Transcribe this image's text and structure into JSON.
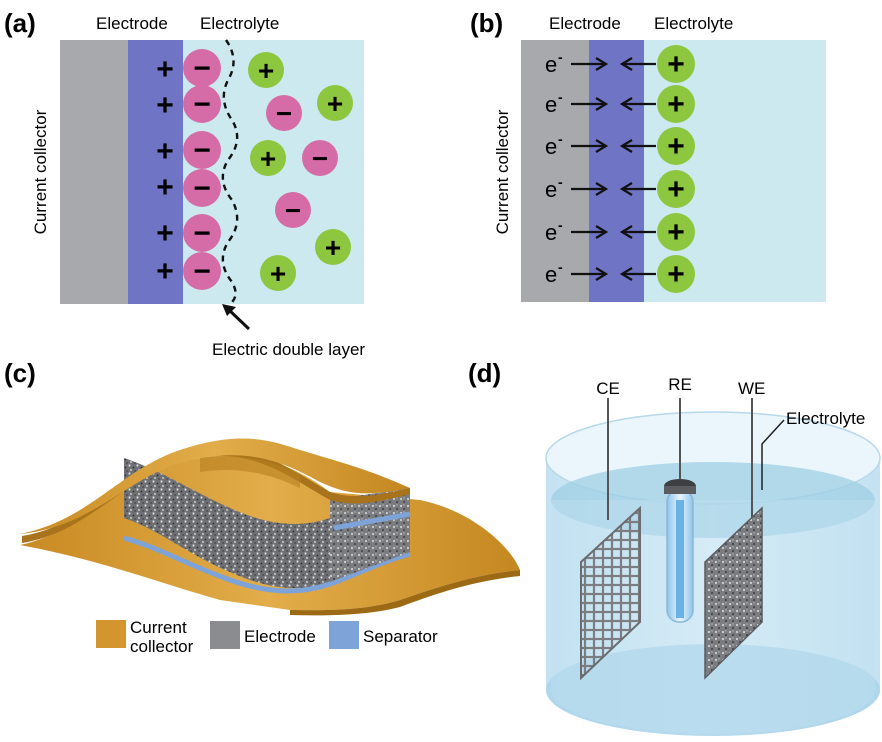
{
  "panels": {
    "a": {
      "label": "(a)",
      "electrode_label": "Electrode",
      "electrolyte_label": "Electrolyte",
      "collector_label": "Current collector",
      "edl_label": "Electric double layer",
      "plus_sign": "+",
      "minus_sign": "−"
    },
    "b": {
      "label": "(b)",
      "electrode_label": "Electrode",
      "electrolyte_label": "Electrolyte",
      "collector_label": "Current collector",
      "electron_symbol": "e",
      "electron_charge": "-",
      "plus_sign": "+"
    },
    "c": {
      "label": "(c)",
      "legend": [
        {
          "label_line1": "Current",
          "label_line2": "collector",
          "color": "#d3962e"
        },
        {
          "label_line1": "Electrode",
          "label_line2": "",
          "color": "#8a8c8f"
        },
        {
          "label_line1": "Separator",
          "label_line2": "",
          "color": "#7da3d8"
        }
      ]
    },
    "d": {
      "label": "(d)",
      "ce_label": "CE",
      "re_label": "RE",
      "we_label": "WE",
      "electrolyte_label": "Electrolyte"
    }
  },
  "colors": {
    "collector_gray": "#a8a9ac",
    "electrode_blue": "#6f74c5",
    "electrolyte_bg": "#cbe9ee",
    "anion_pink": "#d66ca7",
    "cation_green": "#8dc63f",
    "gold": "#d3962e"
  }
}
